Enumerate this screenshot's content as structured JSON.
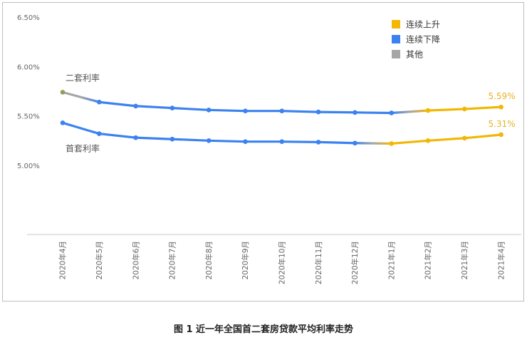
{
  "caption": "图 1  近一年全国首二套房贷款平均利率走势",
  "chart_data": {
    "type": "line",
    "title": "",
    "xlabel": "",
    "ylabel": "",
    "categories": [
      "2020年4月",
      "2020年5月",
      "2020年6月",
      "2020年7月",
      "2020年8月",
      "2020年9月",
      "2020年10月",
      "2020年11月",
      "2020年12月",
      "2021年1月",
      "2021年2月",
      "2021年3月",
      "2021年4月"
    ],
    "ylim": [
      4.3,
      6.5
    ],
    "y_ticks": [
      {
        "value": 6.5,
        "label": "6.50%"
      },
      {
        "value": 6.0,
        "label": "6.00%"
      },
      {
        "value": 5.5,
        "label": "5.50%"
      },
      {
        "value": 5.0,
        "label": "5.00%"
      }
    ],
    "grid": false,
    "legend_position": "top-right",
    "legend": [
      {
        "label": "连续上升",
        "color": "#f2b705"
      },
      {
        "label": "连续下降",
        "color": "#3b82f0"
      },
      {
        "label": "其他",
        "color": "#a6a6a6"
      }
    ],
    "colors": {
      "rise": "#f2b705",
      "fall": "#3b82f0",
      "other": "#a6a6a6",
      "rise_label": "#e8b224"
    },
    "series": [
      {
        "name": "二套利率",
        "values": [
          5.74,
          5.64,
          5.6,
          5.58,
          5.56,
          5.55,
          5.55,
          5.54,
          5.535,
          5.53,
          5.555,
          5.57,
          5.59
        ],
        "segment_types": [
          "other",
          "fall",
          "fall",
          "fall",
          "fall",
          "fall",
          "fall",
          "fall",
          "fall",
          "other",
          "rise",
          "rise"
        ],
        "end_label": "5.59%"
      },
      {
        "name": "首套利率",
        "values": [
          5.43,
          5.32,
          5.28,
          5.265,
          5.25,
          5.24,
          5.24,
          5.235,
          5.225,
          5.22,
          5.25,
          5.275,
          5.31
        ],
        "segment_types": [
          "fall",
          "fall",
          "fall",
          "fall",
          "fall",
          "fall",
          "fall",
          "fall",
          "other",
          "rise",
          "rise",
          "rise"
        ],
        "end_label": "5.31%"
      }
    ]
  }
}
